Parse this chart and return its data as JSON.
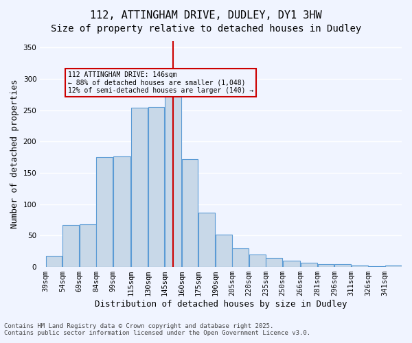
{
  "title_line1": "112, ATTINGHAM DRIVE, DUDLEY, DY1 3HW",
  "title_line2": "Size of property relative to detached houses in Dudley",
  "xlabel": "Distribution of detached houses by size in Dudley",
  "ylabel": "Number of detached properties",
  "annotation_line1": "112 ATTINGHAM DRIVE: 146sqm",
  "annotation_line2": "← 88% of detached houses are smaller (1,048)",
  "annotation_line3": "12% of semi-detached houses are larger (140) →",
  "footer_line1": "Contains HM Land Registry data © Crown copyright and database right 2025.",
  "footer_line2": "Contains public sector information licensed under the Open Government Licence v3.0.",
  "bar_color": "#c8d8e8",
  "bar_edge_color": "#5b9bd5",
  "vline_color": "#cc0000",
  "annotation_box_color": "#cc0000",
  "background_color": "#f0f4ff",
  "grid_color": "#ffffff",
  "categories": [
    "39sqm",
    "54sqm",
    "69sqm",
    "84sqm",
    "99sqm",
    "115sqm",
    "130sqm",
    "145sqm",
    "160sqm",
    "175sqm",
    "190sqm",
    "205sqm",
    "220sqm",
    "235sqm",
    "250sqm",
    "266sqm",
    "281sqm",
    "296sqm",
    "311sqm",
    "326sqm",
    "341sqm"
  ],
  "values": [
    18,
    67,
    68,
    175,
    176,
    254,
    255,
    281,
    282,
    172,
    172,
    86,
    86,
    52,
    52,
    30,
    30,
    20,
    20,
    14,
    14,
    10,
    10,
    7,
    7,
    5,
    5,
    5,
    5,
    2,
    2,
    1,
    1,
    0,
    0,
    2,
    2,
    1,
    1,
    0,
    2,
    2
  ],
  "bar_values": [
    18,
    67,
    68,
    175,
    176,
    254,
    255,
    281,
    172,
    86,
    52,
    30,
    20,
    14,
    10,
    7,
    5,
    5,
    2,
    1,
    2
  ],
  "vline_x": 145,
  "ylim": [
    0,
    360
  ],
  "xlim_min": 39,
  "xlim_max": 356,
  "bin_width": 15,
  "title_fontsize": 11,
  "subtitle_fontsize": 10,
  "tick_fontsize": 7.5,
  "ylabel_fontsize": 9,
  "xlabel_fontsize": 9
}
